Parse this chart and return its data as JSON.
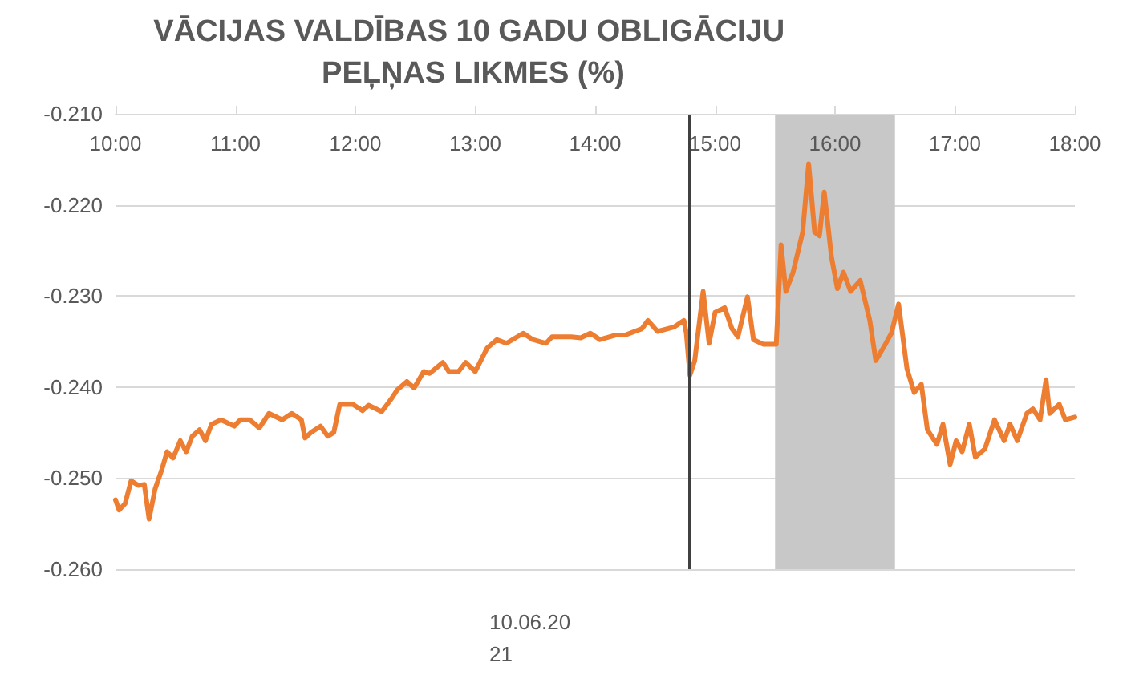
{
  "chart_data": {
    "type": "line",
    "title": "VĀCIJAS VALDĪBAS 10 GADU OBLIGĀCIJU PEĻŅAS LIKMES (%)",
    "xlabel": "10.06.2021",
    "series": [
      {
        "color": "#ed7d31",
        "x": [
          10.0,
          10.03,
          10.08,
          10.13,
          10.19,
          10.24,
          10.28,
          10.33,
          10.39,
          10.43,
          10.48,
          10.54,
          10.59,
          10.64,
          10.7,
          10.75,
          10.8,
          10.88,
          10.99,
          11.04,
          11.12,
          11.2,
          11.28,
          11.39,
          11.47,
          11.55,
          11.58,
          11.63,
          11.71,
          11.77,
          11.82,
          11.87,
          11.98,
          12.06,
          12.11,
          12.22,
          12.3,
          12.35,
          12.43,
          12.49,
          12.57,
          12.62,
          12.73,
          12.78,
          12.86,
          12.92,
          13.0,
          13.1,
          13.18,
          13.26,
          13.4,
          13.48,
          13.59,
          13.64,
          13.72,
          13.8,
          13.88,
          13.96,
          14.04,
          14.17,
          14.25,
          14.39,
          14.44,
          14.52,
          14.66,
          14.74,
          14.76,
          14.79,
          14.83,
          14.9,
          14.95,
          15.0,
          15.08,
          15.14,
          15.19,
          15.27,
          15.32,
          15.4,
          15.51,
          15.55,
          15.59,
          15.65,
          15.73,
          15.78,
          15.83,
          15.87,
          15.91,
          15.97,
          16.02,
          16.07,
          16.13,
          16.21,
          16.29,
          16.34,
          16.42,
          16.47,
          16.53,
          16.6,
          16.66,
          16.72,
          16.77,
          16.85,
          16.9,
          16.96,
          17.01,
          17.06,
          17.12,
          17.17,
          17.25,
          17.33,
          17.41,
          17.46,
          17.52,
          17.6,
          17.65,
          17.71,
          17.76,
          17.79,
          17.87,
          17.92,
          18.0
        ],
        "values": [
          -0.2524,
          -0.2535,
          -0.2528,
          -0.2503,
          -0.2508,
          -0.2507,
          -0.2545,
          -0.2512,
          -0.2489,
          -0.2471,
          -0.2478,
          -0.2459,
          -0.2471,
          -0.2454,
          -0.2447,
          -0.2459,
          -0.2441,
          -0.2436,
          -0.2443,
          -0.2436,
          -0.2436,
          -0.2445,
          -0.2429,
          -0.2436,
          -0.2429,
          -0.2436,
          -0.2456,
          -0.245,
          -0.2443,
          -0.2454,
          -0.245,
          -0.2419,
          -0.2419,
          -0.2426,
          -0.242,
          -0.2427,
          -0.2413,
          -0.2403,
          -0.2394,
          -0.2401,
          -0.2383,
          -0.2385,
          -0.2373,
          -0.2383,
          -0.2383,
          -0.2373,
          -0.2383,
          -0.2357,
          -0.2348,
          -0.2352,
          -0.2341,
          -0.2348,
          -0.2352,
          -0.2345,
          -0.2345,
          -0.2345,
          -0.2346,
          -0.2341,
          -0.2348,
          -0.2343,
          -0.2343,
          -0.2336,
          -0.2327,
          -0.2339,
          -0.2334,
          -0.2327,
          -0.2341,
          -0.2387,
          -0.2371,
          -0.2295,
          -0.2352,
          -0.2318,
          -0.2313,
          -0.2336,
          -0.2345,
          -0.2301,
          -0.2348,
          -0.2353,
          -0.2353,
          -0.2244,
          -0.2295,
          -0.2274,
          -0.223,
          -0.2155,
          -0.223,
          -0.2234,
          -0.2186,
          -0.2257,
          -0.2292,
          -0.2274,
          -0.2295,
          -0.2283,
          -0.2327,
          -0.2371,
          -0.2353,
          -0.2341,
          -0.2309,
          -0.238,
          -0.2406,
          -0.2397,
          -0.2447,
          -0.2463,
          -0.2441,
          -0.2485,
          -0.2459,
          -0.2471,
          -0.2441,
          -0.2477,
          -0.2468,
          -0.2436,
          -0.2459,
          -0.2441,
          -0.2459,
          -0.2429,
          -0.2424,
          -0.2436,
          -0.2392,
          -0.2429,
          -0.2419,
          -0.2436,
          -0.2433
        ]
      }
    ],
    "xlim": [
      10,
      18
    ],
    "xticks": [
      {
        "value": 10,
        "label": "10:00"
      },
      {
        "value": 11,
        "label": "11:00"
      },
      {
        "value": 12,
        "label": "12:00"
      },
      {
        "value": 13,
        "label": "13:00"
      },
      {
        "value": 14,
        "label": "14:00"
      },
      {
        "value": 15,
        "label": "15:00"
      },
      {
        "value": 16,
        "label": "16:00"
      },
      {
        "value": 17,
        "label": "17:00"
      },
      {
        "value": 18,
        "label": "18:00"
      }
    ],
    "ylim": [
      -0.26,
      -0.21
    ],
    "yticks": [
      {
        "value": -0.26,
        "label": "-0.260"
      },
      {
        "value": -0.25,
        "label": "-0.250"
      },
      {
        "value": -0.24,
        "label": "-0.240"
      },
      {
        "value": -0.23,
        "label": "-0.230"
      },
      {
        "value": -0.22,
        "label": "-0.220"
      },
      {
        "value": -0.21,
        "label": "-0.210"
      }
    ],
    "ref_lines": [
      {
        "axis": "x",
        "value": 14.78,
        "color": "#404040"
      }
    ],
    "bands": [
      {
        "axis": "x",
        "from": 15.5,
        "to": 16.5,
        "color": "#c8c8c8"
      }
    ],
    "grid": "y",
    "marker": "none",
    "line_style": "solid"
  }
}
